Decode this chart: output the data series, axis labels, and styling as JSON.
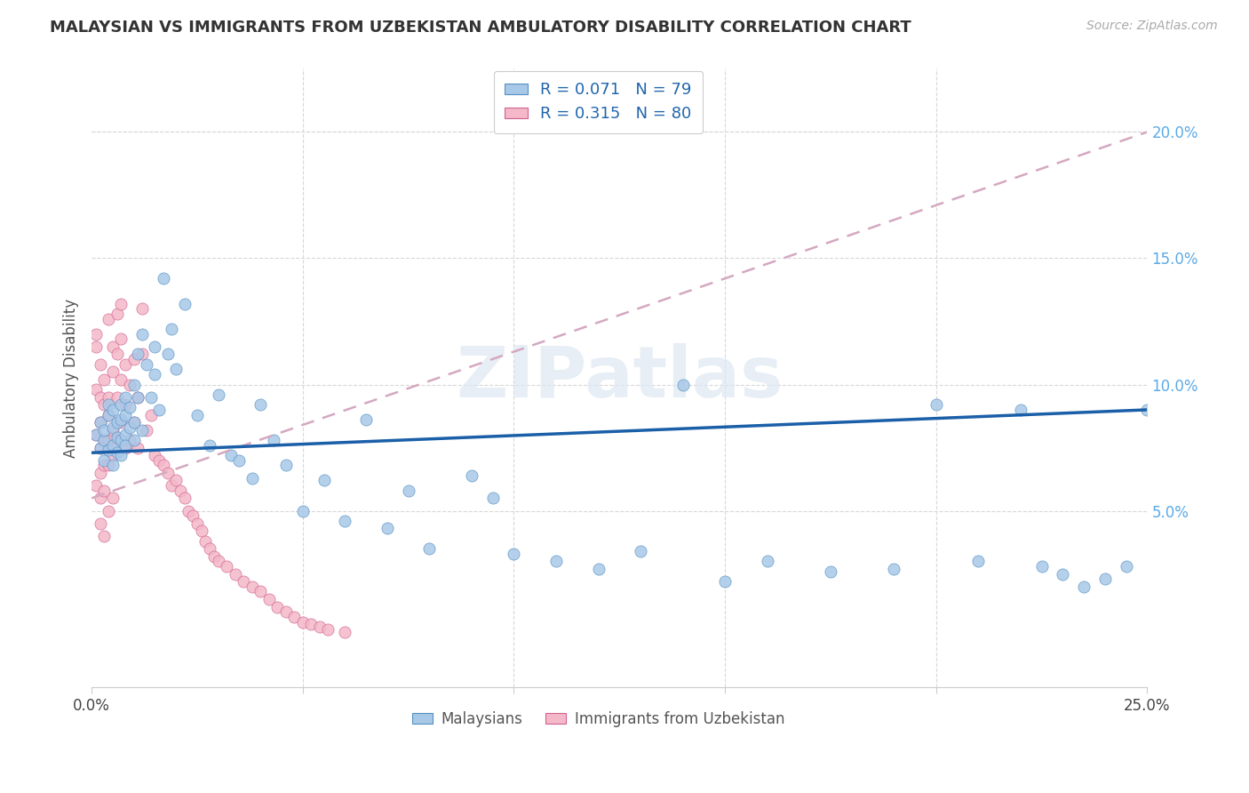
{
  "title": "MALAYSIAN VS IMMIGRANTS FROM UZBEKISTAN AMBULATORY DISABILITY CORRELATION CHART",
  "source": "Source: ZipAtlas.com",
  "ylabel": "Ambulatory Disability",
  "xlim": [
    0.0,
    0.25
  ],
  "ylim": [
    -0.02,
    0.225
  ],
  "y_ticks_right": [
    0.05,
    0.1,
    0.15,
    0.2
  ],
  "y_tick_labels_right": [
    "5.0%",
    "10.0%",
    "15.0%",
    "20.0%"
  ],
  "color_malaysian": "#a8c8e8",
  "color_uzbekistan": "#f4b8c8",
  "color_edge_malaysian": "#5590c0",
  "color_edge_uzbekistan": "#d06090",
  "color_line_malaysian": "#1a5fa8",
  "color_line_uzbekistan_dashed": "#d4a8c0",
  "background_color": "#ffffff",
  "malaysian_x": [
    0.001,
    0.002,
    0.002,
    0.003,
    0.003,
    0.003,
    0.004,
    0.004,
    0.004,
    0.005,
    0.005,
    0.005,
    0.005,
    0.006,
    0.006,
    0.006,
    0.007,
    0.007,
    0.007,
    0.007,
    0.008,
    0.008,
    0.008,
    0.008,
    0.009,
    0.009,
    0.01,
    0.01,
    0.01,
    0.011,
    0.011,
    0.012,
    0.012,
    0.013,
    0.014,
    0.015,
    0.015,
    0.016,
    0.017,
    0.018,
    0.019,
    0.02,
    0.022,
    0.025,
    0.028,
    0.03,
    0.033,
    0.035,
    0.038,
    0.04,
    0.043,
    0.046,
    0.05,
    0.055,
    0.06,
    0.065,
    0.07,
    0.075,
    0.08,
    0.09,
    0.095,
    0.1,
    0.11,
    0.12,
    0.13,
    0.14,
    0.15,
    0.16,
    0.175,
    0.19,
    0.2,
    0.21,
    0.22,
    0.225,
    0.23,
    0.235,
    0.24,
    0.245,
    0.25
  ],
  "malaysian_y": [
    0.08,
    0.075,
    0.085,
    0.078,
    0.082,
    0.07,
    0.088,
    0.074,
    0.092,
    0.076,
    0.083,
    0.068,
    0.09,
    0.079,
    0.085,
    0.073,
    0.092,
    0.078,
    0.086,
    0.072,
    0.095,
    0.08,
    0.088,
    0.076,
    0.083,
    0.091,
    0.1,
    0.085,
    0.078,
    0.112,
    0.095,
    0.12,
    0.082,
    0.108,
    0.095,
    0.115,
    0.104,
    0.09,
    0.142,
    0.112,
    0.122,
    0.106,
    0.132,
    0.088,
    0.076,
    0.096,
    0.072,
    0.07,
    0.063,
    0.092,
    0.078,
    0.068,
    0.05,
    0.062,
    0.046,
    0.086,
    0.043,
    0.058,
    0.035,
    0.064,
    0.055,
    0.033,
    0.03,
    0.027,
    0.034,
    0.1,
    0.022,
    0.03,
    0.026,
    0.027,
    0.092,
    0.03,
    0.09,
    0.028,
    0.025,
    0.02,
    0.023,
    0.028,
    0.09
  ],
  "uzbekistan_x": [
    0.001,
    0.001,
    0.001,
    0.001,
    0.001,
    0.002,
    0.002,
    0.002,
    0.002,
    0.002,
    0.002,
    0.002,
    0.003,
    0.003,
    0.003,
    0.003,
    0.003,
    0.003,
    0.004,
    0.004,
    0.004,
    0.004,
    0.004,
    0.004,
    0.005,
    0.005,
    0.005,
    0.005,
    0.005,
    0.006,
    0.006,
    0.006,
    0.006,
    0.007,
    0.007,
    0.007,
    0.007,
    0.008,
    0.008,
    0.008,
    0.009,
    0.009,
    0.01,
    0.01,
    0.011,
    0.011,
    0.012,
    0.012,
    0.013,
    0.014,
    0.015,
    0.016,
    0.017,
    0.018,
    0.019,
    0.02,
    0.021,
    0.022,
    0.023,
    0.024,
    0.025,
    0.026,
    0.027,
    0.028,
    0.029,
    0.03,
    0.032,
    0.034,
    0.036,
    0.038,
    0.04,
    0.042,
    0.044,
    0.046,
    0.048,
    0.05,
    0.052,
    0.054,
    0.056,
    0.06
  ],
  "uzbekistan_y": [
    0.12,
    0.098,
    0.115,
    0.08,
    0.06,
    0.095,
    0.108,
    0.075,
    0.055,
    0.085,
    0.065,
    0.045,
    0.092,
    0.078,
    0.102,
    0.068,
    0.058,
    0.04,
    0.088,
    0.078,
    0.126,
    0.095,
    0.068,
    0.05,
    0.105,
    0.082,
    0.115,
    0.072,
    0.055,
    0.112,
    0.095,
    0.128,
    0.078,
    0.118,
    0.102,
    0.132,
    0.085,
    0.108,
    0.075,
    0.092,
    0.1,
    0.078,
    0.11,
    0.085,
    0.075,
    0.095,
    0.13,
    0.112,
    0.082,
    0.088,
    0.072,
    0.07,
    0.068,
    0.065,
    0.06,
    0.062,
    0.058,
    0.055,
    0.05,
    0.048,
    0.045,
    0.042,
    0.038,
    0.035,
    0.032,
    0.03,
    0.028,
    0.025,
    0.022,
    0.02,
    0.018,
    0.015,
    0.012,
    0.01,
    0.008,
    0.006,
    0.005,
    0.004,
    0.003,
    0.002
  ]
}
